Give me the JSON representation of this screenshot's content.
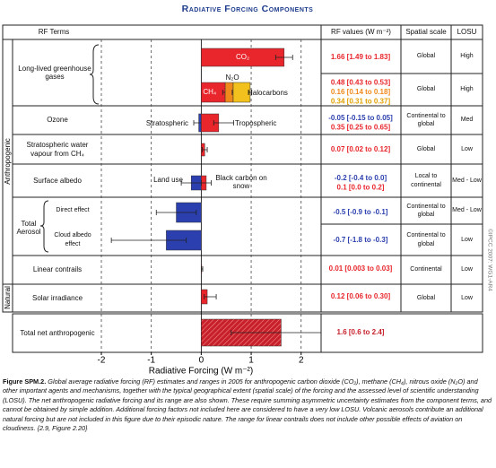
{
  "chart_data": {
    "type": "hbar",
    "title": "Radiative Forcing Components",
    "headers": [
      "RF Terms",
      "RF values (W m⁻²)",
      "Spatial scale",
      "LOSU"
    ],
    "xlabel": "Radiative Forcing (W m⁻²)",
    "xlim": [
      -2,
      2.4
    ],
    "xticks": [
      -2,
      -1,
      0,
      1,
      2
    ],
    "grid": true,
    "sectors": [
      "Anthropogenic",
      "Natural"
    ],
    "ghg_label": "Long-lived greenhouse gases",
    "aerosol_label": "Total Aerosol",
    "copyright": "©IPCC 2007: WG1-AR4",
    "rows": [
      {
        "bars": [
          {
            "name": "CO₂",
            "value": 1.66,
            "range": [
              1.49,
              1.83
            ],
            "color": "#e8262c",
            "value_label": "1.66 [1.49 to 1.83]"
          }
        ],
        "spatial_scale": "Global",
        "losu": "High"
      },
      {
        "stacked": true,
        "bars": [
          {
            "name": "CH₄",
            "value": 0.48,
            "range": [
              0.43,
              0.53
            ],
            "color": "#e8262c",
            "value_label": "0.48 [0.43 to 0.53]"
          },
          {
            "name": "N₂O",
            "value": 0.16,
            "range": [
              0.14,
              0.18
            ],
            "color": "#f0891c",
            "value_label": "0.16 [0.14 to 0.18]"
          },
          {
            "name": "Halocarbons",
            "value": 0.34,
            "range": [
              0.31,
              0.37
            ],
            "color": "#f2c11e",
            "value_label": "0.34 [0.31 to 0.37]"
          }
        ],
        "spatial_scale": "Global",
        "losu": "High"
      },
      {
        "label": "Ozone",
        "bars": [
          {
            "name": "Stratospheric",
            "value": -0.05,
            "range": [
              -0.15,
              0.05
            ],
            "color": "#2b3fae",
            "value_label": "-0.05 [-0.15 to 0.05]"
          },
          {
            "name": "Tropospheric",
            "value": 0.35,
            "range": [
              0.25,
              0.65
            ],
            "color": "#e8262c",
            "value_label": "0.35 [0.25 to 0.65]"
          }
        ],
        "spatial_scale": "Continental to global",
        "losu": "Med"
      },
      {
        "label": "Stratospheric water vapour from CH₄",
        "bars": [
          {
            "value": 0.07,
            "range": [
              0.02,
              0.12
            ],
            "color": "#e8262c",
            "value_label": "0.07 [0.02 to 0.12]"
          }
        ],
        "spatial_scale": "Global",
        "losu": "Low"
      },
      {
        "label": "Surface albedo",
        "bars": [
          {
            "name": "Land use",
            "value": -0.2,
            "range": [
              -0.4,
              0.0
            ],
            "color": "#2b3fae",
            "value_label": "-0.2 [-0.4 to 0.0]"
          },
          {
            "name": "Black carbon on snow",
            "value": 0.1,
            "range": [
              0.0,
              0.2
            ],
            "color": "#e8262c",
            "value_label": "0.1 [0.0 to 0.2]"
          }
        ],
        "spatial_scale": "Local to continental",
        "losu": "Med - Low"
      },
      {
        "label": "Direct effect",
        "bars": [
          {
            "value": -0.5,
            "range": [
              -0.9,
              -0.1
            ],
            "color": "#2b3fae",
            "value_label": "-0.5 [-0.9 to -0.1]"
          }
        ],
        "spatial_scale": "Continental to global",
        "losu": "Med - Low"
      },
      {
        "label": "Cloud albedo effect",
        "bars": [
          {
            "value": -0.7,
            "range": [
              -1.8,
              -0.3
            ],
            "color": "#2b3fae",
            "value_label": "-0.7 [-1.8 to -0.3]"
          }
        ],
        "spatial_scale": "Continental to global",
        "losu": "Low"
      },
      {
        "label": "Linear contrails",
        "bars": [
          {
            "value": 0.01,
            "range": [
              0.003,
              0.03
            ],
            "color": "#e8262c",
            "value_label": "0.01 [0.003 to 0.03]"
          }
        ],
        "spatial_scale": "Continental",
        "losu": "Low"
      },
      {
        "label": "Solar irradiance",
        "bars": [
          {
            "value": 0.12,
            "range": [
              0.06,
              0.3
            ],
            "color": "#e8262c",
            "value_label": "0.12 [0.06 to 0.30]"
          }
        ],
        "spatial_scale": "Global",
        "losu": "Low"
      },
      {
        "label": "Total net anthropogenic",
        "bars": [
          {
            "value": 1.6,
            "range": [
              0.6,
              2.4
            ],
            "color": "#c8202a",
            "value_label": "1.6 [0.6 to 2.4]"
          }
        ]
      }
    ],
    "caption_label": "Figure SPM.2.",
    "caption": "Global average radiative forcing (RF) estimates and ranges in 2005 for anthropogenic carbon dioxide (CO₂), methane (CH₄), nitrous oxide (N₂O) and other important agents and mechanisms, together with the typical geographical extent (spatial scale) of the forcing and the assessed level of scientific understanding (LOSU). The net anthropogenic radiative forcing and its range are also shown. These require summing asymmetric uncertainty estimates from the component terms, and cannot be obtained by simple addition. Additional forcing factors not included here are considered to have a very low LOSU. Volcanic aerosols contribute an additional natural forcing but are not included in this figure due to their episodic nature. The range for linear contrails does not include other possible effects of aviation on cloudiness. {2.9, Figure 2.20}"
  }
}
